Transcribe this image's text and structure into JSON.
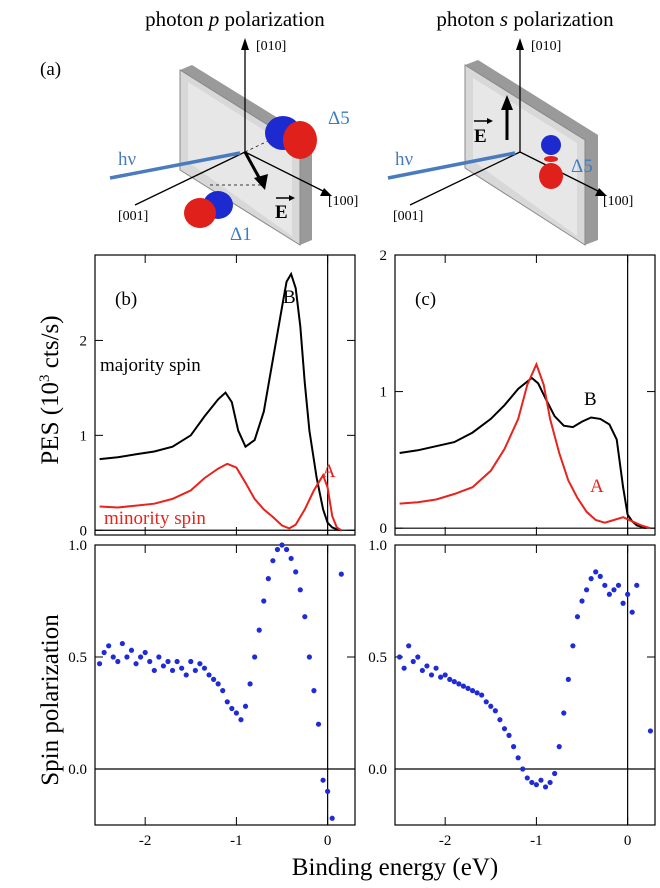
{
  "figure": {
    "col_titles": {
      "left_pre": "photon ",
      "left_var": "p",
      "left_post": " polarization",
      "right_pre": "photon ",
      "right_var": "s",
      "right_post": " polarization"
    },
    "panel_labels": {
      "a": "(a)",
      "b": "(b)",
      "c": "(c)"
    },
    "diagram": {
      "hv": "hν",
      "axis_010": "[010]",
      "axis_100": "[100]",
      "axis_001": "[001]",
      "E": "E",
      "delta5": "Δ5",
      "delta1": "Δ1"
    },
    "pes_ylabel": "PES (10",
    "pes_ylabel_exp": "3",
    "pes_ylabel_unit": " cts/s)",
    "spin_ylabel": "Spin polarization",
    "xlabel": "Binding energy (eV)",
    "annotations": {
      "majority": "majority spin",
      "minority": "minority spin",
      "B": "B",
      "A": "A"
    },
    "colors": {
      "majority": "#000000",
      "minority": "#e8231c",
      "spin": "#1f2bd6",
      "hv": "#4a7bbf",
      "delta": "#3a7ec2",
      "orb_red": "#e0201a",
      "orb_blue": "#1c2ad0"
    }
  },
  "chart_data": [
    {
      "type": "line",
      "panel": "b",
      "xlim": [
        -2.55,
        0.3
      ],
      "ylim": [
        -0.05,
        2.9
      ],
      "x_ticks": [
        "-2",
        "-1",
        "0"
      ],
      "y_ticks": [
        "0",
        "1",
        "2"
      ],
      "series": [
        {
          "name": "majority spin",
          "x": [
            -2.5,
            -2.3,
            -2.1,
            -1.9,
            -1.7,
            -1.5,
            -1.35,
            -1.2,
            -1.12,
            -1.05,
            -0.98,
            -0.9,
            -0.8,
            -0.7,
            -0.6,
            -0.5,
            -0.45,
            -0.4,
            -0.35,
            -0.3,
            -0.25,
            -0.2,
            -0.12,
            -0.05,
            0.0,
            0.05,
            0.1,
            0.15
          ],
          "y": [
            0.75,
            0.77,
            0.8,
            0.83,
            0.88,
            1.0,
            1.2,
            1.38,
            1.45,
            1.35,
            1.05,
            0.88,
            0.95,
            1.25,
            1.8,
            2.35,
            2.62,
            2.7,
            2.55,
            2.15,
            1.55,
            1.05,
            0.55,
            0.22,
            0.08,
            0.03,
            0.01,
            0.0
          ]
        },
        {
          "name": "minority spin",
          "x": [
            -2.5,
            -2.3,
            -2.1,
            -1.9,
            -1.7,
            -1.5,
            -1.35,
            -1.2,
            -1.1,
            -1.0,
            -0.9,
            -0.8,
            -0.7,
            -0.6,
            -0.5,
            -0.42,
            -0.35,
            -0.25,
            -0.15,
            -0.05,
            0.0,
            0.05,
            0.1,
            0.15
          ],
          "y": [
            0.25,
            0.24,
            0.26,
            0.28,
            0.33,
            0.42,
            0.55,
            0.65,
            0.7,
            0.66,
            0.5,
            0.33,
            0.22,
            0.14,
            0.05,
            0.02,
            0.06,
            0.22,
            0.42,
            0.58,
            0.45,
            0.15,
            0.03,
            0.0
          ]
        }
      ]
    },
    {
      "type": "line",
      "panel": "c",
      "xlim": [
        -2.55,
        0.3
      ],
      "ylim": [
        -0.05,
        2.0
      ],
      "x_ticks": [
        "-2",
        "-1",
        "0"
      ],
      "y_ticks": [
        "0",
        "1",
        "2"
      ],
      "series": [
        {
          "name": "majority spin",
          "x": [
            -2.5,
            -2.3,
            -2.1,
            -1.9,
            -1.7,
            -1.5,
            -1.35,
            -1.2,
            -1.05,
            -0.98,
            -0.9,
            -0.8,
            -0.7,
            -0.6,
            -0.5,
            -0.4,
            -0.3,
            -0.2,
            -0.12,
            -0.05,
            0.0,
            0.05,
            0.1,
            0.2
          ],
          "y": [
            0.55,
            0.57,
            0.6,
            0.63,
            0.7,
            0.8,
            0.9,
            1.02,
            1.1,
            1.06,
            0.95,
            0.82,
            0.75,
            0.74,
            0.78,
            0.81,
            0.8,
            0.76,
            0.65,
            0.3,
            0.1,
            0.05,
            0.02,
            0.0
          ]
        },
        {
          "name": "minority spin",
          "x": [
            -2.5,
            -2.3,
            -2.1,
            -1.9,
            -1.7,
            -1.5,
            -1.35,
            -1.2,
            -1.1,
            -1.0,
            -0.92,
            -0.85,
            -0.75,
            -0.65,
            -0.55,
            -0.45,
            -0.35,
            -0.25,
            -0.15,
            -0.05,
            0.05,
            0.15,
            0.25
          ],
          "y": [
            0.18,
            0.19,
            0.21,
            0.25,
            0.3,
            0.42,
            0.58,
            0.8,
            1.05,
            1.2,
            1.05,
            0.8,
            0.55,
            0.35,
            0.22,
            0.12,
            0.06,
            0.04,
            0.06,
            0.08,
            0.05,
            0.02,
            0.0
          ]
        }
      ]
    },
    {
      "type": "scatter",
      "panel": "b-spin",
      "xlim": [
        -2.55,
        0.3
      ],
      "ylim": [
        -0.25,
        1.0
      ],
      "x_ticks": [
        "-2",
        "-1",
        "0"
      ],
      "y_ticks": [
        "0.0",
        "0.5",
        "1.0"
      ],
      "series": [
        {
          "name": "spin polarization",
          "x": [
            -2.5,
            -2.45,
            -2.4,
            -2.35,
            -2.3,
            -2.25,
            -2.2,
            -2.15,
            -2.1,
            -2.05,
            -2.0,
            -1.95,
            -1.9,
            -1.85,
            -1.8,
            -1.75,
            -1.7,
            -1.65,
            -1.6,
            -1.55,
            -1.5,
            -1.45,
            -1.4,
            -1.35,
            -1.3,
            -1.25,
            -1.2,
            -1.15,
            -1.1,
            -1.05,
            -1.0,
            -0.95,
            -0.9,
            -0.85,
            -0.8,
            -0.75,
            -0.7,
            -0.65,
            -0.6,
            -0.55,
            -0.5,
            -0.45,
            -0.4,
            -0.35,
            -0.3,
            -0.25,
            -0.2,
            -0.15,
            -0.1,
            -0.05,
            0.0,
            0.05,
            0.15
          ],
          "y": [
            0.47,
            0.52,
            0.55,
            0.5,
            0.48,
            0.56,
            0.5,
            0.53,
            0.47,
            0.5,
            0.52,
            0.48,
            0.44,
            0.5,
            0.46,
            0.48,
            0.44,
            0.48,
            0.45,
            0.42,
            0.48,
            0.44,
            0.47,
            0.45,
            0.42,
            0.4,
            0.38,
            0.35,
            0.3,
            0.27,
            0.25,
            0.22,
            0.28,
            0.38,
            0.5,
            0.62,
            0.75,
            0.85,
            0.93,
            0.98,
            1.0,
            0.98,
            0.94,
            0.88,
            0.8,
            0.68,
            0.5,
            0.35,
            0.2,
            -0.05,
            -0.1,
            -0.22,
            0.87
          ]
        }
      ]
    },
    {
      "type": "scatter",
      "panel": "c-spin",
      "xlim": [
        -2.55,
        0.3
      ],
      "ylim": [
        -0.25,
        1.0
      ],
      "x_ticks": [
        "-2",
        "-1",
        "0"
      ],
      "y_ticks": [
        "0.0",
        "0.5",
        "1.0"
      ],
      "series": [
        {
          "name": "spin polarization",
          "x": [
            -2.5,
            -2.45,
            -2.4,
            -2.35,
            -2.3,
            -2.25,
            -2.2,
            -2.15,
            -2.1,
            -2.05,
            -2.0,
            -1.95,
            -1.9,
            -1.85,
            -1.8,
            -1.75,
            -1.7,
            -1.65,
            -1.6,
            -1.55,
            -1.5,
            -1.45,
            -1.4,
            -1.35,
            -1.3,
            -1.25,
            -1.2,
            -1.15,
            -1.1,
            -1.05,
            -1.0,
            -0.95,
            -0.9,
            -0.85,
            -0.8,
            -0.75,
            -0.7,
            -0.65,
            -0.6,
            -0.55,
            -0.5,
            -0.45,
            -0.4,
            -0.35,
            -0.3,
            -0.25,
            -0.2,
            -0.15,
            -0.1,
            -0.05,
            0.0,
            0.05,
            0.1,
            0.25
          ],
          "y": [
            0.5,
            0.45,
            0.55,
            0.48,
            0.5,
            0.44,
            0.46,
            0.42,
            0.45,
            0.41,
            0.42,
            0.4,
            0.39,
            0.38,
            0.37,
            0.36,
            0.35,
            0.34,
            0.33,
            0.3,
            0.28,
            0.26,
            0.22,
            0.18,
            0.15,
            0.1,
            0.05,
            0.0,
            -0.04,
            -0.06,
            -0.07,
            -0.05,
            -0.08,
            -0.06,
            -0.02,
            0.1,
            0.25,
            0.4,
            0.55,
            0.68,
            0.75,
            0.8,
            0.85,
            0.88,
            0.86,
            0.82,
            0.78,
            0.8,
            0.82,
            0.74,
            0.78,
            0.7,
            0.82,
            0.17
          ]
        }
      ]
    }
  ]
}
